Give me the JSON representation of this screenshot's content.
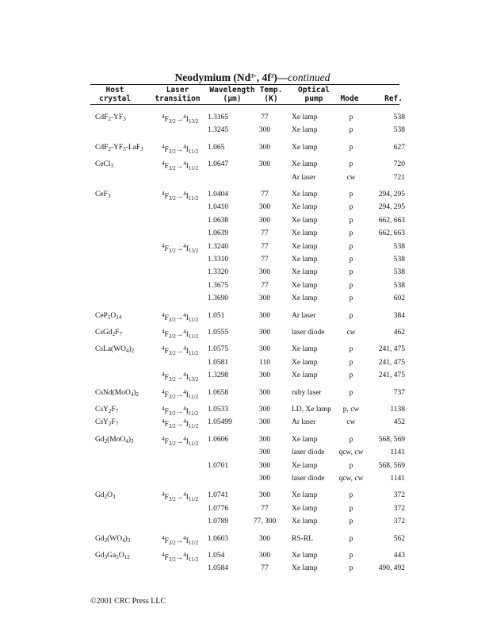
{
  "title": {
    "element": "Neodymium",
    "ion": "Nd3+",
    "config": "4f3",
    "suffix": "continued"
  },
  "columns": [
    [
      "Host",
      "crystal"
    ],
    [
      "Laser",
      "transition"
    ],
    [
      "Wavelength",
      "(µm)"
    ],
    [
      "Temp.",
      "(K)"
    ],
    [
      "Optical",
      "pump"
    ],
    [
      "",
      "Mode"
    ],
    [
      "",
      "Ref."
    ]
  ],
  "groups": [
    {
      "host": "CdF2-YF3",
      "rows": [
        [
          "4F3/2→4I13/2",
          "1.3165",
          "77",
          "Xe lamp",
          "p",
          "538"
        ],
        [
          "",
          "1.3245",
          "300",
          "Xe lamp",
          "p",
          "538"
        ]
      ]
    },
    {
      "host": "CdF2-YF3-LaF3",
      "rows": [
        [
          "4F3/2→4I11/2",
          "1.065",
          "300",
          "Xe lamp",
          "p",
          "627"
        ]
      ]
    },
    {
      "host": "CeCl3",
      "rows": [
        [
          "4F3/2→4I11/2",
          "1.0647",
          "300",
          "Xe lamp",
          "p",
          "720"
        ],
        [
          "",
          "",
          "",
          "Ar laser",
          "cw",
          "721"
        ]
      ]
    },
    {
      "host": "CeF3",
      "rows": [
        [
          "4F3/2→4I11/2",
          "1.0404",
          "77",
          "Xe lamp",
          "p",
          "294, 295"
        ],
        [
          "",
          "1.0410",
          "300",
          "Xe lamp",
          "p",
          "294, 295"
        ],
        [
          "",
          "1.0638",
          "300",
          "Xe lamp",
          "p",
          "662, 663"
        ],
        [
          "",
          "1.0639",
          "77",
          "Xe lamp",
          "p",
          "662, 663"
        ],
        [
          "4F3/2→4I13/2",
          "1.3240",
          "77",
          "Xe lamp",
          "p",
          "538"
        ],
        [
          "",
          "1.3310",
          "77",
          "Xe lamp",
          "p",
          "538"
        ],
        [
          "",
          "1.3320",
          "300",
          "Xe lamp",
          "p",
          "538"
        ],
        [
          "",
          "1.3675",
          "77",
          "Xe lamp",
          "p",
          "538"
        ],
        [
          "",
          "1.3690",
          "300",
          "Xe lamp",
          "p",
          "602"
        ]
      ]
    },
    {
      "host": "CeP5O14",
      "rows": [
        [
          "4F3/2→4I11/2",
          "1.051",
          "300",
          "Ar laser",
          "p",
          "384"
        ]
      ]
    },
    {
      "host": "CsGd2F7",
      "rows": [
        [
          "4F3/2→4I11/2",
          "1.0555",
          "300",
          "laser diode",
          "cw",
          "462"
        ]
      ]
    },
    {
      "host": "CsLa(WO4)2",
      "rows": [
        [
          "4F3/2→4I11/2",
          "1.0575",
          "300",
          "Xe lamp",
          "p",
          "241, 475"
        ],
        [
          "",
          "1.0581",
          "110",
          "Xe lamp",
          "p",
          "241, 475"
        ],
        [
          "4F3/2→4I13/2",
          "1.3298",
          "300",
          "Xe lamp",
          "p",
          "241, 475"
        ]
      ]
    },
    {
      "host": "CsNd(MoO4)2",
      "rows": [
        [
          "4F3/2→4I11/2",
          "1.0658",
          "300",
          "ruby laser",
          "p",
          "737"
        ]
      ]
    },
    {
      "host": "CsY2F7",
      "rows": [
        [
          "4F3/2→4I11/2",
          "1.0533",
          "300",
          "LD, Xe lamp",
          "p, cw",
          "1138"
        ]
      ]
    },
    {
      "host": "CsY2F7",
      "tight": true,
      "rows": [
        [
          "4F3/2→4I11/2",
          "1.05499",
          "300",
          "Ar laser",
          "cw",
          "452"
        ]
      ]
    },
    {
      "host": "Gd2(MoO4)3",
      "rows": [
        [
          "4F3/2→4I11/2",
          "1.0606",
          "300",
          "Xe lamp",
          "p",
          "568, 569"
        ],
        [
          "",
          "",
          "300",
          "laser diode",
          "qcw, cw",
          "1141"
        ],
        [
          "",
          "1.0701",
          "300",
          "Xe lamp",
          "p",
          "568, 569"
        ],
        [
          "",
          "",
          "300",
          "laser diode",
          "qcw, cw",
          "1141"
        ]
      ]
    },
    {
      "host": "Gd2O3",
      "rows": [
        [
          "4F3/2→4I11/2",
          "1.0741",
          "300",
          "Xe lamp",
          "p",
          "372"
        ],
        [
          "",
          "1.0776",
          "77",
          "Xe lamp",
          "p",
          "372"
        ],
        [
          "",
          "1.0789",
          "77, 300",
          "Xe lamp",
          "p",
          "372"
        ]
      ]
    },
    {
      "host": "Gd2(WO4)3",
      "rows": [
        [
          "4F3/2→4I11/2",
          "1.0603",
          "300",
          "RS-RL",
          "p",
          "562"
        ]
      ]
    },
    {
      "host": "Gd3Ga5O12",
      "rows": [
        [
          "4F3/2→4I11/2",
          "1.054",
          "300",
          "Xe lamp",
          "p",
          "443"
        ],
        [
          "",
          "1.0584",
          "77",
          "Xe lamp",
          "p",
          "490, 492"
        ]
      ]
    }
  ],
  "footer": "©2001 CRC Press LLC"
}
